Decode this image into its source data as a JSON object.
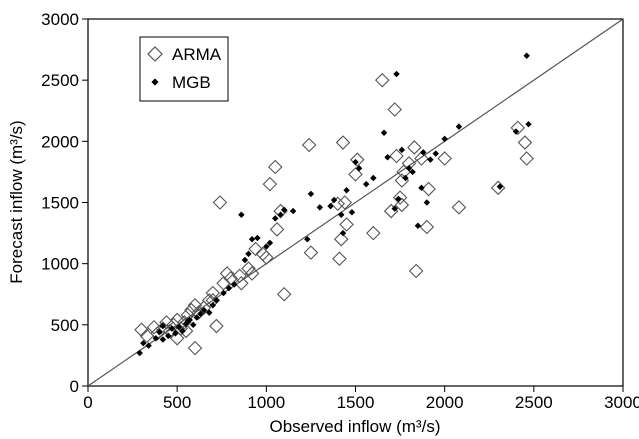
{
  "chart_data": {
    "type": "scatter",
    "title": "",
    "xlabel": "Observed inflow (m³/s)",
    "ylabel": "Forecast inflow (m³/s)",
    "xlim": [
      0,
      3000
    ],
    "ylim": [
      0,
      3000
    ],
    "xticks": [
      "0",
      "500",
      "1000",
      "1500",
      "2000",
      "2500",
      "3000"
    ],
    "yticks": [
      "0",
      "500",
      "1000",
      "1500",
      "2000",
      "2500",
      "3000"
    ],
    "grid": false,
    "legend": "top-left",
    "reference_line": {
      "from": [
        0,
        0
      ],
      "to": [
        3000,
        3000
      ]
    },
    "series": [
      {
        "name": "ARMA",
        "marker": "open-diamond",
        "color": "#555555",
        "points": [
          [
            300,
            460
          ],
          [
            330,
            410
          ],
          [
            370,
            480
          ],
          [
            390,
            430
          ],
          [
            420,
            470
          ],
          [
            440,
            520
          ],
          [
            460,
            450
          ],
          [
            480,
            500
          ],
          [
            500,
            540
          ],
          [
            520,
            470
          ],
          [
            540,
            520
          ],
          [
            560,
            580
          ],
          [
            580,
            620
          ],
          [
            600,
            660
          ],
          [
            620,
            600
          ],
          [
            650,
            640
          ],
          [
            680,
            700
          ],
          [
            700,
            760
          ],
          [
            720,
            490
          ],
          [
            760,
            840
          ],
          [
            800,
            880
          ],
          [
            850,
            900
          ],
          [
            900,
            960
          ],
          [
            940,
            1120
          ],
          [
            980,
            1080
          ],
          [
            1000,
            1050
          ],
          [
            1020,
            1650
          ],
          [
            1050,
            1790
          ],
          [
            1060,
            1280
          ],
          [
            1080,
            1430
          ],
          [
            1100,
            750
          ],
          [
            1240,
            1970
          ],
          [
            1250,
            1090
          ],
          [
            1400,
            1490
          ],
          [
            1410,
            1040
          ],
          [
            1420,
            1200
          ],
          [
            1430,
            1990
          ],
          [
            1440,
            1500
          ],
          [
            1450,
            1320
          ],
          [
            1500,
            1730
          ],
          [
            1510,
            1850
          ],
          [
            1600,
            1250
          ],
          [
            1650,
            2500
          ],
          [
            1700,
            1430
          ],
          [
            1720,
            2260
          ],
          [
            1730,
            1880
          ],
          [
            1760,
            1680
          ],
          [
            1750,
            1540
          ],
          [
            1760,
            1480
          ],
          [
            1770,
            1750
          ],
          [
            1800,
            1820
          ],
          [
            1830,
            1950
          ],
          [
            1840,
            940
          ],
          [
            1870,
            1860
          ],
          [
            1900,
            1300
          ],
          [
            1910,
            1610
          ],
          [
            2000,
            1860
          ],
          [
            2080,
            1460
          ],
          [
            2300,
            1620
          ],
          [
            2410,
            2110
          ],
          [
            2450,
            1990
          ],
          [
            2460,
            1860
          ],
          [
            600,
            310
          ],
          [
            740,
            1500
          ],
          [
            780,
            920
          ],
          [
            700,
            700
          ],
          [
            860,
            840
          ],
          [
            920,
            920
          ],
          [
            550,
            450
          ],
          [
            500,
            390
          ]
        ]
      },
      {
        "name": "MGB",
        "marker": "filled-diamond",
        "color": "#000000",
        "points": [
          [
            290,
            270
          ],
          [
            310,
            350
          ],
          [
            340,
            330
          ],
          [
            380,
            390
          ],
          [
            400,
            440
          ],
          [
            420,
            380
          ],
          [
            450,
            410
          ],
          [
            470,
            470
          ],
          [
            490,
            430
          ],
          [
            510,
            480
          ],
          [
            530,
            450
          ],
          [
            550,
            510
          ],
          [
            570,
            540
          ],
          [
            590,
            500
          ],
          [
            610,
            560
          ],
          [
            630,
            590
          ],
          [
            650,
            620
          ],
          [
            680,
            600
          ],
          [
            700,
            660
          ],
          [
            720,
            700
          ],
          [
            760,
            760
          ],
          [
            790,
            800
          ],
          [
            820,
            830
          ],
          [
            860,
            1400
          ],
          [
            880,
            1030
          ],
          [
            900,
            1080
          ],
          [
            920,
            1200
          ],
          [
            950,
            1210
          ],
          [
            1000,
            1140
          ],
          [
            1020,
            1170
          ],
          [
            1050,
            1370
          ],
          [
            1080,
            1400
          ],
          [
            1100,
            1440
          ],
          [
            1150,
            1430
          ],
          [
            1230,
            1200
          ],
          [
            1250,
            1570
          ],
          [
            1300,
            1460
          ],
          [
            1360,
            1470
          ],
          [
            1380,
            1520
          ],
          [
            1420,
            1400
          ],
          [
            1430,
            1250
          ],
          [
            1450,
            1600
          ],
          [
            1480,
            1420
          ],
          [
            1500,
            1830
          ],
          [
            1520,
            1780
          ],
          [
            1560,
            1650
          ],
          [
            1600,
            1700
          ],
          [
            1660,
            2070
          ],
          [
            1680,
            1870
          ],
          [
            1720,
            1450
          ],
          [
            1730,
            2550
          ],
          [
            1740,
            1530
          ],
          [
            1760,
            1930
          ],
          [
            1780,
            1700
          ],
          [
            1800,
            1780
          ],
          [
            1820,
            1750
          ],
          [
            1850,
            1310
          ],
          [
            1870,
            1620
          ],
          [
            1880,
            1910
          ],
          [
            1900,
            1500
          ],
          [
            1920,
            1850
          ],
          [
            1950,
            1900
          ],
          [
            2000,
            2020
          ],
          [
            2080,
            2120
          ],
          [
            2310,
            1630
          ],
          [
            2400,
            2080
          ],
          [
            2460,
            2700
          ],
          [
            2470,
            2140
          ],
          [
            420,
            490
          ],
          [
            560,
            530
          ]
        ]
      }
    ]
  }
}
